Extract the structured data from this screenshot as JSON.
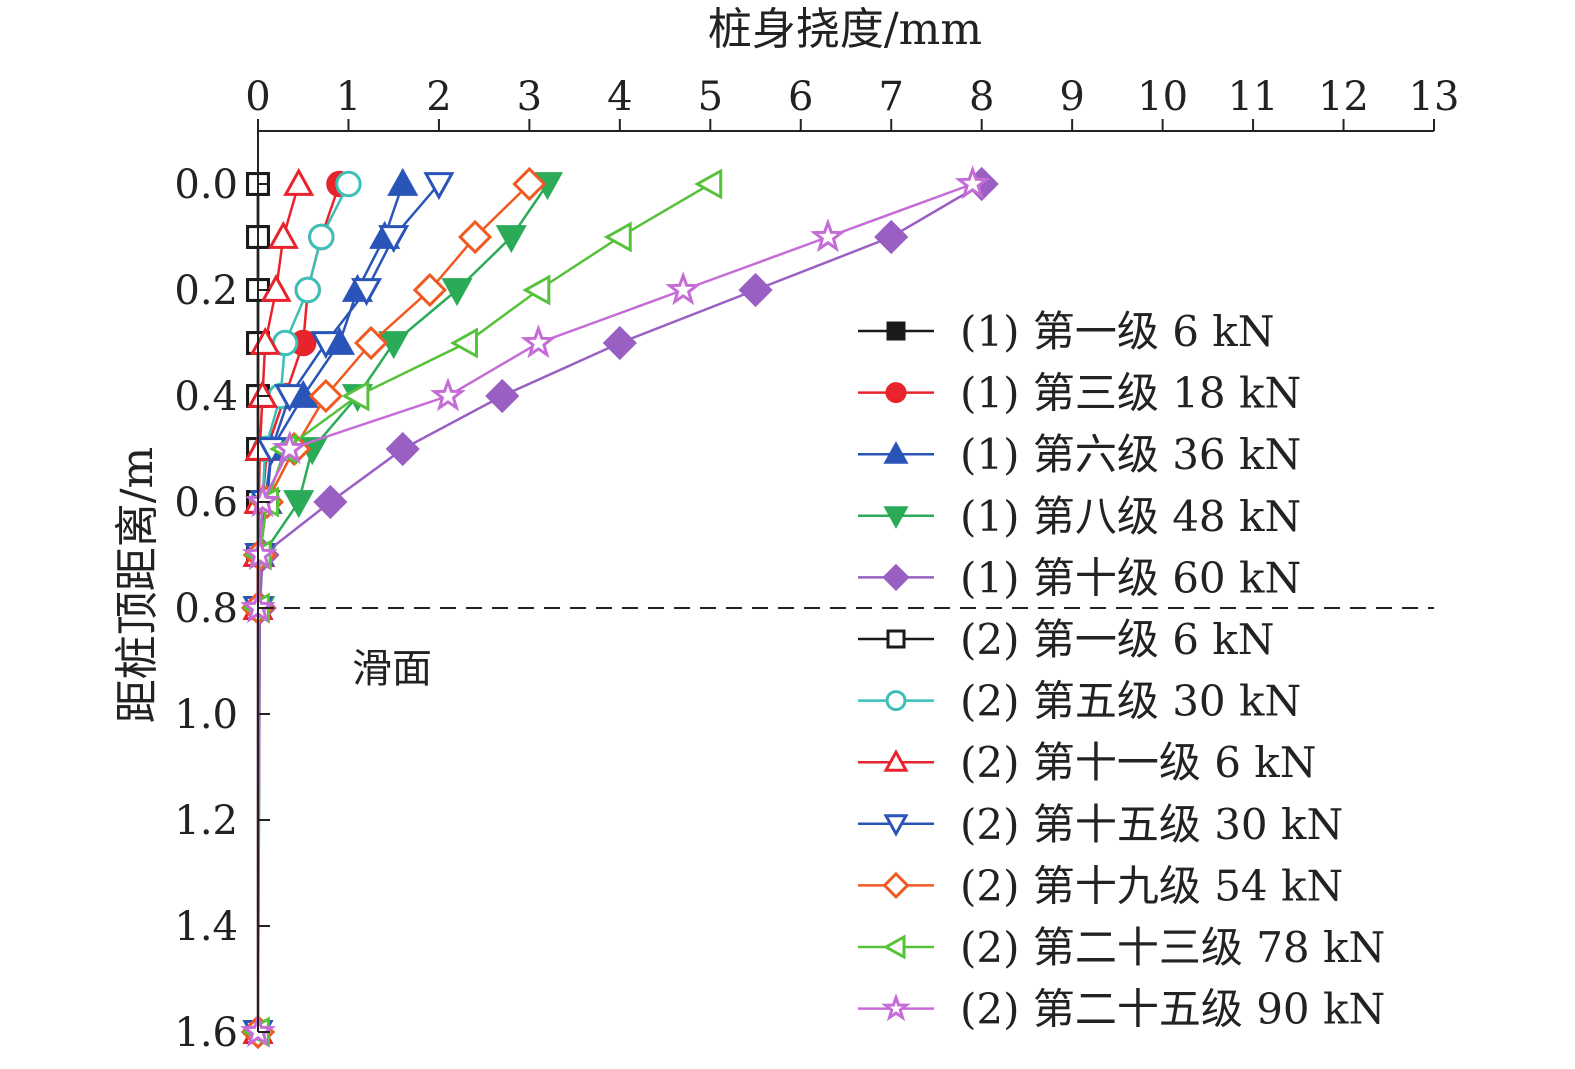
{
  "chart_data": {
    "type": "line",
    "xlabel": "桩身挠度/mm",
    "ylabel": "距桩顶距离/m",
    "xlim": [
      0,
      13
    ],
    "ylim": [
      0,
      1.6
    ],
    "x_axis_position": "top",
    "y_axis_inverted": true,
    "xticks": [
      "0",
      "1",
      "2",
      "3",
      "4",
      "5",
      "6",
      "7",
      "8",
      "9",
      "10",
      "11",
      "12",
      "13"
    ],
    "yticks": [
      "0.0",
      "0.2",
      "0.4",
      "0.6",
      "0.8",
      "1.0",
      "1.2",
      "1.4",
      "1.6"
    ],
    "grid": false,
    "legend_position": "right",
    "annotation": {
      "text": "滑面",
      "y": 0.8,
      "line_style": "dashed"
    },
    "series": [
      {
        "name": "(1) 第一级 6 kN",
        "color": "#1a1a1a",
        "marker": "square",
        "filled": true,
        "points": [
          [
            0,
            0
          ],
          [
            0,
            0.1
          ],
          [
            0,
            0.2
          ],
          [
            0,
            0.3
          ],
          [
            0,
            0.4
          ],
          [
            0,
            0.5
          ],
          [
            0,
            0.6
          ],
          [
            0,
            0.7
          ],
          [
            0,
            0.8
          ],
          [
            0,
            1.6
          ]
        ]
      },
      {
        "name": "(1) 第三级 18 kN",
        "color": "#e8232b",
        "marker": "circle",
        "filled": true,
        "points": [
          [
            0.9,
            0
          ],
          [
            0.7,
            0.1
          ],
          [
            0.55,
            0.2
          ],
          [
            0.5,
            0.3
          ],
          [
            0.3,
            0.4
          ],
          [
            0.1,
            0.5
          ],
          [
            0.05,
            0.6
          ],
          [
            0.02,
            0.7
          ],
          [
            0,
            0.8
          ],
          [
            0,
            1.6
          ]
        ]
      },
      {
        "name": "(1) 第六级 36 kN",
        "color": "#2a55b8",
        "marker": "triangle-up",
        "filled": true,
        "points": [
          [
            1.6,
            0
          ],
          [
            1.4,
            0.1
          ],
          [
            1.1,
            0.2
          ],
          [
            0.9,
            0.3
          ],
          [
            0.5,
            0.4
          ],
          [
            0.15,
            0.5
          ],
          [
            0.1,
            0.6
          ],
          [
            0.02,
            0.7
          ],
          [
            0,
            0.8
          ],
          [
            0,
            1.6
          ]
        ]
      },
      {
        "name": "(1) 第八级 48 kN",
        "color": "#2bab58",
        "marker": "triangle-down",
        "filled": true,
        "points": [
          [
            3.2,
            0
          ],
          [
            2.8,
            0.1
          ],
          [
            2.2,
            0.2
          ],
          [
            1.5,
            0.3
          ],
          [
            1.1,
            0.4
          ],
          [
            0.6,
            0.5
          ],
          [
            0.45,
            0.6
          ],
          [
            0.05,
            0.7
          ],
          [
            0.02,
            0.8
          ],
          [
            0,
            1.6
          ]
        ]
      },
      {
        "name": "(1) 第十级 60 kN",
        "color": "#9a5fc2",
        "marker": "diamond",
        "filled": true,
        "points": [
          [
            8,
            0
          ],
          [
            7,
            0.1
          ],
          [
            5.5,
            0.2
          ],
          [
            4,
            0.3
          ],
          [
            2.7,
            0.4
          ],
          [
            1.6,
            0.5
          ],
          [
            0.8,
            0.6
          ],
          [
            0.05,
            0.7
          ],
          [
            0.02,
            0.8
          ],
          [
            0,
            1.6
          ]
        ]
      },
      {
        "name": "(2) 第一级 6 kN",
        "color": "#1a1a1a",
        "marker": "square",
        "filled": false,
        "points": [
          [
            0,
            0
          ],
          [
            0,
            0.1
          ],
          [
            0,
            0.2
          ],
          [
            0,
            0.3
          ],
          [
            0,
            0.4
          ],
          [
            0,
            0.5
          ],
          [
            0,
            0.6
          ],
          [
            0,
            0.7
          ],
          [
            0,
            0.8
          ],
          [
            0,
            1.6
          ]
        ]
      },
      {
        "name": "(2) 第五级 30 kN",
        "color": "#3bbfb6",
        "marker": "circle",
        "filled": false,
        "points": [
          [
            1,
            0
          ],
          [
            0.7,
            0.1
          ],
          [
            0.55,
            0.2
          ],
          [
            0.3,
            0.3
          ],
          [
            0.25,
            0.4
          ],
          [
            0.08,
            0.5
          ],
          [
            0.05,
            0.6
          ],
          [
            0.02,
            0.7
          ],
          [
            0,
            0.8
          ],
          [
            0,
            1.6
          ]
        ]
      },
      {
        "name": "(2) 第十一级 6 kN",
        "color": "#e8232b",
        "marker": "triangle-up",
        "filled": false,
        "points": [
          [
            0.45,
            0
          ],
          [
            0.28,
            0.1
          ],
          [
            0.2,
            0.2
          ],
          [
            0.08,
            0.3
          ],
          [
            0.05,
            0.4
          ],
          [
            0.02,
            0.5
          ],
          [
            0.01,
            0.6
          ],
          [
            0,
            0.7
          ],
          [
            0,
            0.8
          ],
          [
            0,
            1.6
          ]
        ]
      },
      {
        "name": "(2) 第十五级 30 kN",
        "color": "#2a55b8",
        "marker": "triangle-down",
        "filled": false,
        "points": [
          [
            2,
            0
          ],
          [
            1.5,
            0.1
          ],
          [
            1.2,
            0.2
          ],
          [
            0.75,
            0.3
          ],
          [
            0.35,
            0.4
          ],
          [
            0.15,
            0.5
          ],
          [
            0.08,
            0.6
          ],
          [
            0.02,
            0.7
          ],
          [
            0,
            0.8
          ],
          [
            0,
            1.6
          ]
        ]
      },
      {
        "name": "(2) 第十九级 54 kN",
        "color": "#f05a22",
        "marker": "diamond",
        "filled": false,
        "points": [
          [
            3,
            0
          ],
          [
            2.4,
            0.1
          ],
          [
            1.9,
            0.2
          ],
          [
            1.25,
            0.3
          ],
          [
            0.75,
            0.4
          ],
          [
            0.4,
            0.5
          ],
          [
            0.1,
            0.6
          ],
          [
            0.02,
            0.7
          ],
          [
            0,
            0.8
          ],
          [
            0,
            1.6
          ]
        ]
      },
      {
        "name": "(2) 第二十三级 78 kN",
        "color": "#55c23a",
        "marker": "triangle-left",
        "filled": false,
        "points": [
          [
            5,
            0
          ],
          [
            4,
            0.1
          ],
          [
            3.1,
            0.2
          ],
          [
            2.3,
            0.3
          ],
          [
            1.1,
            0.4
          ],
          [
            0.3,
            0.5
          ],
          [
            0.1,
            0.6
          ],
          [
            0.02,
            0.7
          ],
          [
            0,
            0.8
          ],
          [
            0,
            1.6
          ]
        ]
      },
      {
        "name": "(2) 第二十五级 90 kN",
        "color": "#c66cd6",
        "marker": "star",
        "filled": false,
        "points": [
          [
            7.9,
            0
          ],
          [
            6.3,
            0.1
          ],
          [
            4.7,
            0.2
          ],
          [
            3.1,
            0.3
          ],
          [
            2.1,
            0.4
          ],
          [
            0.35,
            0.5
          ],
          [
            0.05,
            0.6
          ],
          [
            0.02,
            0.7
          ],
          [
            0,
            0.8
          ],
          [
            0,
            1.6
          ]
        ]
      }
    ]
  }
}
